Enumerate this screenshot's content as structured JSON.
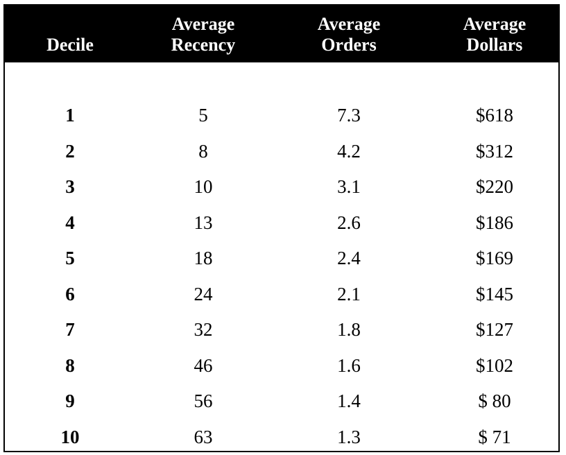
{
  "colors": {
    "header_background": "#000000",
    "header_text": "#ffffff",
    "body_background": "#ffffff",
    "body_text": "#000000"
  },
  "table": {
    "headers": [
      {
        "key": "decile",
        "lines": [
          "",
          "Decile"
        ]
      },
      {
        "key": "recency",
        "lines": [
          "Average",
          "Recency"
        ]
      },
      {
        "key": "orders",
        "lines": [
          "Average",
          "Orders"
        ]
      },
      {
        "key": "dollars",
        "lines": [
          "Average",
          "Dollars"
        ]
      }
    ],
    "rows": [
      {
        "decile": "1",
        "recency": "5",
        "orders": "7.3",
        "dollars": "$618"
      },
      {
        "decile": "2",
        "recency": "8",
        "orders": "4.2",
        "dollars": "$312"
      },
      {
        "decile": "3",
        "recency": "10",
        "orders": "3.1",
        "dollars": "$220"
      },
      {
        "decile": "4",
        "recency": "13",
        "orders": "2.6",
        "dollars": "$186"
      },
      {
        "decile": "5",
        "recency": "18",
        "orders": "2.4",
        "dollars": "$169"
      },
      {
        "decile": "6",
        "recency": "24",
        "orders": "2.1",
        "dollars": "$145"
      },
      {
        "decile": "7",
        "recency": "32",
        "orders": "1.8",
        "dollars": "$127"
      },
      {
        "decile": "8",
        "recency": "46",
        "orders": "1.6",
        "dollars": "$102"
      },
      {
        "decile": "9",
        "recency": "56",
        "orders": "1.4",
        "dollars": "$ 80"
      },
      {
        "decile": "10",
        "recency": "63",
        "orders": "1.3",
        "dollars": "$ 71"
      }
    ]
  }
}
